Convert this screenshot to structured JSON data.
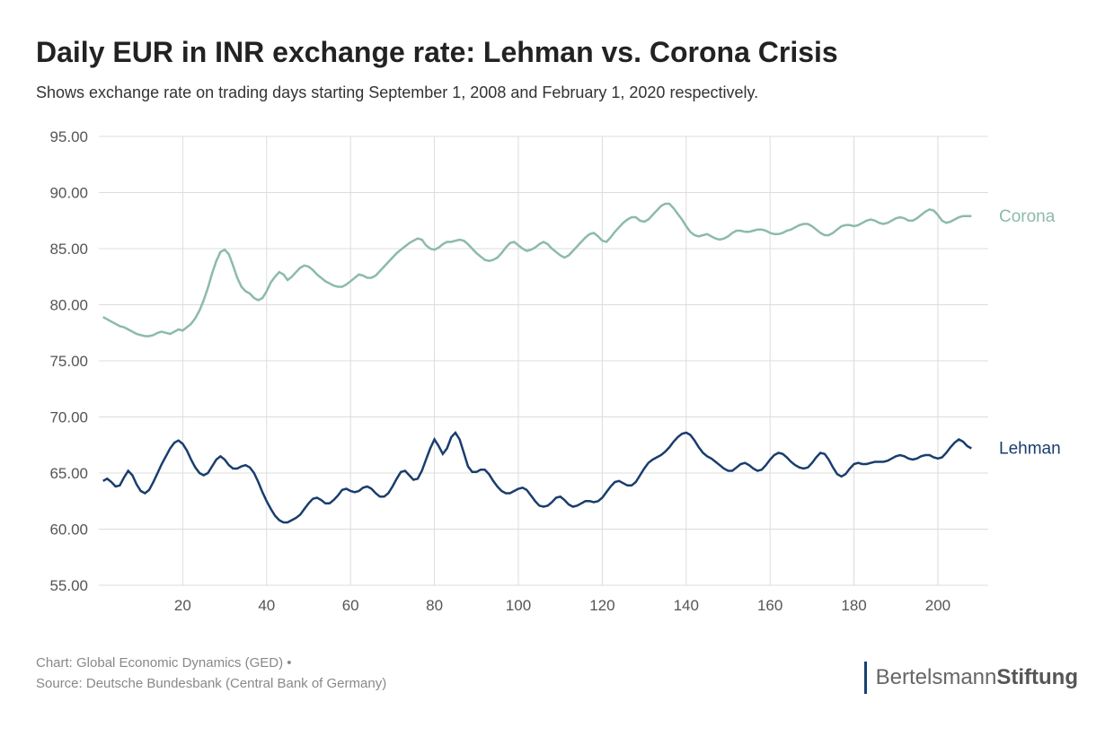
{
  "title": "Daily EUR in INR exchange rate: Lehman vs. Corona Crisis",
  "subtitle": "Shows exchange rate on trading days starting September 1, 2008 and February 1, 2020 respectively.",
  "footer_chart": "Chart: Global Economic Dynamics (GED) •",
  "footer_source": "Source: Deutsche Bundesbank (Central Bank of Germany)",
  "brand_light": "Bertelsmann",
  "brand_bold": "Stiftung",
  "chart": {
    "type": "line",
    "background_color": "#ffffff",
    "grid_color": "#dcdcdb",
    "tick_color": "#555555",
    "ylim": [
      55,
      95
    ],
    "ytick_step": 5,
    "ytick_decimals": 2,
    "xlim": [
      0,
      212
    ],
    "xticks": [
      20,
      40,
      60,
      80,
      100,
      120,
      140,
      160,
      180,
      200
    ],
    "label_fontsize": 17,
    "line_width": 2.5,
    "series": [
      {
        "name": "Corona",
        "label": "Corona",
        "color": "#8cbaab",
        "data": [
          78.9,
          78.7,
          78.5,
          78.3,
          78.1,
          78.0,
          77.8,
          77.6,
          77.4,
          77.3,
          77.2,
          77.2,
          77.3,
          77.5,
          77.6,
          77.5,
          77.4,
          77.6,
          77.8,
          77.7,
          78.0,
          78.3,
          78.8,
          79.5,
          80.4,
          81.5,
          82.8,
          83.9,
          84.7,
          84.9,
          84.5,
          83.5,
          82.4,
          81.6,
          81.2,
          81.0,
          80.6,
          80.4,
          80.6,
          81.2,
          82.0,
          82.5,
          82.9,
          82.7,
          82.2,
          82.5,
          82.9,
          83.3,
          83.5,
          83.4,
          83.1,
          82.7,
          82.4,
          82.1,
          81.9,
          81.7,
          81.6,
          81.6,
          81.8,
          82.1,
          82.4,
          82.7,
          82.6,
          82.4,
          82.4,
          82.6,
          83.0,
          83.4,
          83.8,
          84.2,
          84.6,
          84.9,
          85.2,
          85.5,
          85.7,
          85.9,
          85.8,
          85.3,
          85.0,
          84.9,
          85.1,
          85.4,
          85.6,
          85.6,
          85.7,
          85.8,
          85.7,
          85.4,
          85.0,
          84.6,
          84.3,
          84.0,
          83.9,
          84.0,
          84.2,
          84.6,
          85.1,
          85.5,
          85.6,
          85.3,
          85.0,
          84.8,
          84.9,
          85.1,
          85.4,
          85.6,
          85.4,
          85.0,
          84.7,
          84.4,
          84.2,
          84.4,
          84.8,
          85.2,
          85.6,
          86.0,
          86.3,
          86.4,
          86.1,
          85.7,
          85.6,
          86.0,
          86.5,
          86.9,
          87.3,
          87.6,
          87.8,
          87.8,
          87.5,
          87.4,
          87.6,
          88.0,
          88.4,
          88.8,
          89.0,
          89.0,
          88.6,
          88.1,
          87.6,
          87.0,
          86.5,
          86.2,
          86.1,
          86.2,
          86.3,
          86.1,
          85.9,
          85.8,
          85.9,
          86.1,
          86.4,
          86.6,
          86.6,
          86.5,
          86.5,
          86.6,
          86.7,
          86.7,
          86.6,
          86.4,
          86.3,
          86.3,
          86.4,
          86.6,
          86.7,
          86.9,
          87.1,
          87.2,
          87.2,
          87.0,
          86.7,
          86.4,
          86.2,
          86.2,
          86.4,
          86.7,
          87.0,
          87.1,
          87.1,
          87.0,
          87.1,
          87.3,
          87.5,
          87.6,
          87.5,
          87.3,
          87.2,
          87.3,
          87.5,
          87.7,
          87.8,
          87.7,
          87.5,
          87.5,
          87.7,
          88.0,
          88.3,
          88.5,
          88.4,
          88.0,
          87.5,
          87.3,
          87.4,
          87.6,
          87.8,
          87.9,
          87.9,
          87.9
        ]
      },
      {
        "name": "Lehman",
        "label": "Lehman",
        "color": "#1a3d6d",
        "data": [
          64.3,
          64.5,
          64.2,
          63.8,
          63.9,
          64.6,
          65.2,
          64.8,
          64.0,
          63.4,
          63.2,
          63.5,
          64.2,
          65.0,
          65.8,
          66.5,
          67.2,
          67.7,
          67.9,
          67.6,
          67.0,
          66.2,
          65.5,
          65.0,
          64.8,
          65.0,
          65.6,
          66.2,
          66.5,
          66.2,
          65.7,
          65.4,
          65.4,
          65.6,
          65.7,
          65.5,
          65.0,
          64.2,
          63.3,
          62.5,
          61.8,
          61.2,
          60.8,
          60.6,
          60.6,
          60.8,
          61.0,
          61.3,
          61.8,
          62.3,
          62.7,
          62.8,
          62.6,
          62.3,
          62.3,
          62.6,
          63.0,
          63.5,
          63.6,
          63.4,
          63.3,
          63.4,
          63.7,
          63.8,
          63.6,
          63.2,
          62.9,
          62.9,
          63.2,
          63.8,
          64.5,
          65.1,
          65.2,
          64.8,
          64.4,
          64.5,
          65.2,
          66.2,
          67.2,
          68.0,
          67.4,
          66.7,
          67.2,
          68.2,
          68.6,
          68.0,
          66.8,
          65.6,
          65.1,
          65.1,
          65.3,
          65.3,
          64.9,
          64.3,
          63.8,
          63.4,
          63.2,
          63.2,
          63.4,
          63.6,
          63.7,
          63.5,
          63.0,
          62.5,
          62.1,
          62.0,
          62.1,
          62.4,
          62.8,
          62.9,
          62.6,
          62.2,
          62.0,
          62.1,
          62.3,
          62.5,
          62.5,
          62.4,
          62.5,
          62.8,
          63.3,
          63.8,
          64.2,
          64.3,
          64.1,
          63.9,
          63.9,
          64.2,
          64.8,
          65.4,
          65.9,
          66.2,
          66.4,
          66.6,
          66.9,
          67.3,
          67.8,
          68.2,
          68.5,
          68.6,
          68.4,
          67.9,
          67.3,
          66.8,
          66.5,
          66.3,
          66.0,
          65.7,
          65.4,
          65.2,
          65.2,
          65.5,
          65.8,
          65.9,
          65.7,
          65.4,
          65.2,
          65.3,
          65.7,
          66.2,
          66.6,
          66.8,
          66.7,
          66.4,
          66.0,
          65.7,
          65.5,
          65.4,
          65.5,
          65.9,
          66.4,
          66.8,
          66.7,
          66.2,
          65.5,
          64.9,
          64.7,
          64.9,
          65.4,
          65.8,
          65.9,
          65.8,
          65.8,
          65.9,
          66.0,
          66.0,
          66.0,
          66.1,
          66.3,
          66.5,
          66.6,
          66.5,
          66.3,
          66.2,
          66.3,
          66.5,
          66.6,
          66.6,
          66.4,
          66.3,
          66.4,
          66.8,
          67.3,
          67.7,
          68.0,
          67.8,
          67.4,
          67.2
        ]
      }
    ]
  }
}
